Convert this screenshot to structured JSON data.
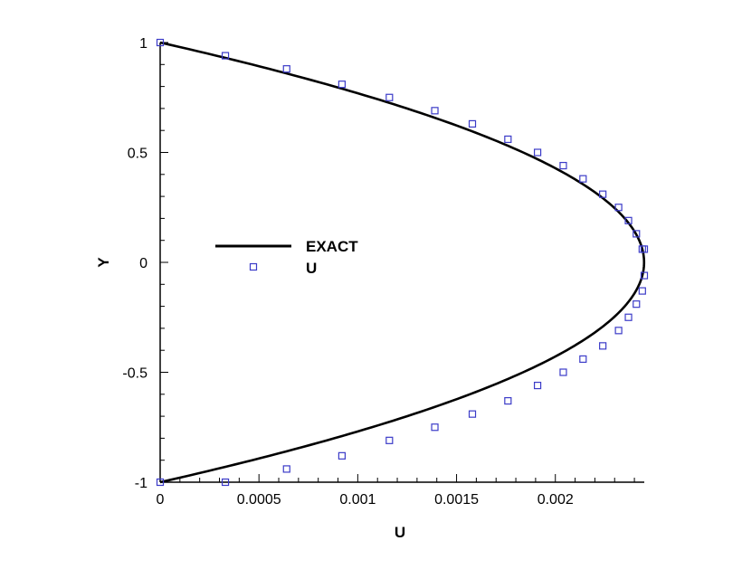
{
  "chart_data": {
    "type": "line",
    "title": "",
    "xlabel": "U",
    "ylabel": "Y",
    "xlim": [
      0,
      0.00245
    ],
    "ylim": [
      -1,
      1
    ],
    "grid": false,
    "legend_placement": "left-center",
    "x_ticks": [
      0,
      0.0005,
      0.001,
      0.0015,
      0.002
    ],
    "x_tick_labels": [
      "0",
      "0.0005",
      "0.001",
      "0.0015",
      "0.002"
    ],
    "y_ticks": [
      -1,
      -0.5,
      0,
      0.5,
      1
    ],
    "y_tick_labels": [
      "-1",
      "-0.5",
      "0",
      "0.5",
      "1"
    ],
    "series": [
      {
        "name": "EXACT",
        "style": "solid-line",
        "color": "#000000",
        "umax": 0.002449,
        "x": [
          0,
          0.000332,
          0.000642,
          0.000925,
          0.00118,
          0.00141,
          0.00161,
          0.00178,
          0.00193,
          0.00205,
          0.00215,
          0.00225,
          0.00232,
          0.00237,
          0.00241,
          0.00244,
          0.002449,
          0.00244,
          0.00241,
          0.00237,
          0.00232,
          0.00225,
          0.00215,
          0.00205,
          0.00193,
          0.00178,
          0.00161,
          0.00141,
          0.00118,
          0.000925,
          0.000642,
          0.000332,
          0
        ],
        "y": [
          1,
          0.93,
          0.87,
          0.8,
          0.73,
          0.66,
          0.59,
          0.52,
          0.45,
          0.39,
          0.33,
          0.25,
          0.19,
          0.14,
          0.09,
          0.04,
          0,
          -0.04,
          -0.09,
          -0.14,
          -0.19,
          -0.25,
          -0.33,
          -0.39,
          -0.45,
          -0.52,
          -0.59,
          -0.66,
          -0.73,
          -0.8,
          -0.87,
          -0.93,
          -1
        ]
      },
      {
        "name": "U",
        "style": "open-square-markers",
        "color": "#3b3bc8",
        "x": [
          0,
          0.00033,
          0.00064,
          0.00092,
          0.00116,
          0.00139,
          0.00158,
          0.00176,
          0.00191,
          0.00204,
          0.00214,
          0.00224,
          0.00232,
          0.00237,
          0.00241,
          0.00244,
          0.00245,
          0.00245,
          0.00244,
          0.00241,
          0.00237,
          0.00232,
          0.00224,
          0.00214,
          0.00204,
          0.00191,
          0.00176,
          0.00158,
          0.00139,
          0.00116,
          0.00092,
          0.00064,
          0.00033,
          0
        ],
        "y": [
          1,
          0.94,
          0.88,
          0.81,
          0.75,
          0.69,
          0.63,
          0.56,
          0.5,
          0.44,
          0.38,
          0.31,
          0.25,
          0.19,
          0.13,
          0.06,
          0.06,
          -0.06,
          -0.13,
          -0.19,
          -0.25,
          -0.31,
          -0.38,
          -0.44,
          -0.5,
          -0.56,
          -0.63,
          -0.69,
          -0.75,
          -0.81,
          -0.88,
          -0.94,
          -1,
          -1
        ]
      }
    ]
  }
}
